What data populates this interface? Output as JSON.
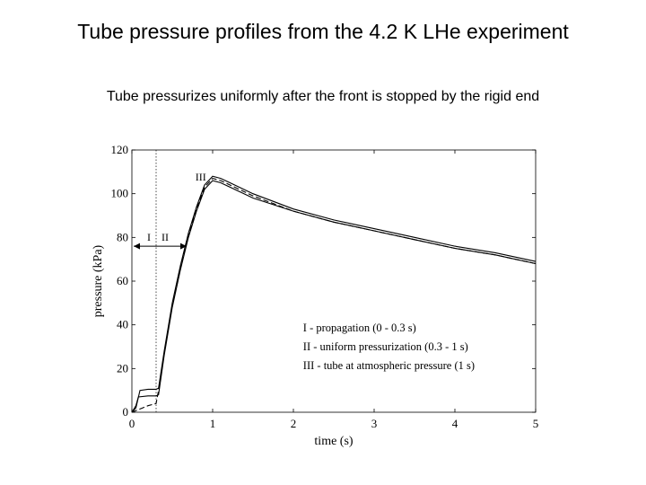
{
  "slide": {
    "title": "Tube pressure profiles from the 4.2 K LHe experiment",
    "subtitle": "Tube pressurizes uniformly after the front is stopped by the rigid end"
  },
  "chart_data": {
    "type": "line",
    "xlabel": "time (s)",
    "ylabel": "pressure (kPa)",
    "xlim": [
      0,
      5
    ],
    "ylim": [
      0,
      120
    ],
    "xticks": [
      0,
      1,
      2,
      3,
      4,
      5
    ],
    "yticks": [
      0,
      20,
      40,
      60,
      80,
      100,
      120
    ],
    "grid": false,
    "legend_position": "bottom-right",
    "legend": [
      "I - propagation (0 - 0.3 s)",
      "II - uniform pressurization (0.3 - 1 s)",
      "III - tube at atmospheric pressure (1 s)"
    ],
    "annotations": {
      "phase_boundary_x": 0.3,
      "arrow_y": 76,
      "region_left": "I",
      "region_right": "II",
      "peak_label": "III"
    },
    "series": [
      {
        "x": [
          0.0,
          0.05,
          0.1,
          0.2,
          0.3,
          0.33,
          0.4,
          0.5,
          0.6,
          0.7,
          0.8,
          0.9,
          0.95,
          1.0,
          1.1,
          1.5,
          2.0,
          2.5,
          3.0,
          3.5,
          4.0,
          4.5,
          5.0
        ],
        "y": [
          0,
          2,
          10,
          10.5,
          10.5,
          11,
          28,
          50,
          67,
          82,
          94,
          104,
          106,
          108,
          107,
          100,
          93,
          88,
          84,
          80,
          76,
          73,
          69
        ]
      },
      {
        "x": [
          0.0,
          0.05,
          0.08,
          0.2,
          0.3,
          0.33,
          0.4,
          0.5,
          0.6,
          0.7,
          0.8,
          0.9,
          0.95,
          1.0,
          1.1,
          1.5,
          2.0,
          2.5,
          3.0,
          3.5,
          4.0,
          4.5,
          5.0
        ],
        "y": [
          0,
          3,
          7,
          7.5,
          7.5,
          8,
          26,
          48,
          65,
          80,
          92,
          102,
          104,
          106,
          105,
          98,
          92,
          87,
          83,
          79,
          75,
          72,
          68
        ]
      },
      {
        "x": [
          0.0,
          0.1,
          0.2,
          0.3,
          0.35,
          0.4,
          0.5,
          0.6,
          0.7,
          0.8,
          0.9,
          0.95,
          1.0,
          1.1,
          1.5,
          2.0,
          2.5,
          3.0,
          3.5,
          4.0,
          4.5,
          5.0
        ],
        "y": [
          0,
          1.5,
          3,
          4,
          14,
          27,
          49,
          66,
          81,
          93,
          103,
          105,
          107,
          106,
          99,
          92,
          87,
          83,
          79,
          75,
          72,
          68
        ]
      }
    ]
  }
}
